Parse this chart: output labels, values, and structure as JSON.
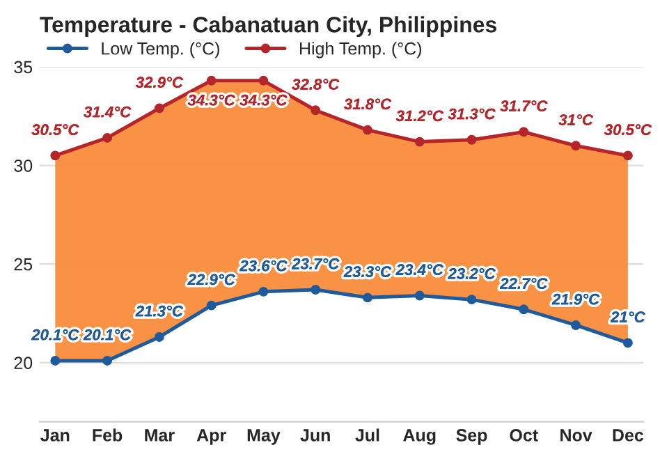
{
  "chart_data": {
    "type": "line",
    "title": "Temperature - Cabanatuan City, Philippines",
    "categories": [
      "Jan",
      "Feb",
      "Mar",
      "Apr",
      "May",
      "Jun",
      "Jul",
      "Aug",
      "Sep",
      "Oct",
      "Nov",
      "Dec"
    ],
    "series": [
      {
        "name": "Low Temp. (°C)",
        "color": "#1f5a9c",
        "values": [
          20.1,
          20.1,
          21.3,
          22.9,
          23.6,
          23.7,
          23.3,
          23.4,
          23.2,
          22.7,
          21.9,
          21
        ],
        "value_labels": [
          "20.1°C",
          "20.1°C",
          "21.3°C",
          "22.9°C",
          "23.6°C",
          "23.7°C",
          "23.3°C",
          "23.4°C",
          "23.2°C",
          "22.7°C",
          "21.9°C",
          "21°C"
        ]
      },
      {
        "name": "High Temp. (°C)",
        "color": "#b5252a",
        "values": [
          30.5,
          31.4,
          32.9,
          34.3,
          34.3,
          32.8,
          31.8,
          31.2,
          31.3,
          31.7,
          31,
          30.5
        ],
        "value_labels": [
          "30.5°C",
          "31.4°C",
          "32.9°C",
          "34.3°C",
          "34.3°C",
          "32.8°C",
          "31.8°C",
          "31.2°C",
          "31.3°C",
          "31.7°C",
          "31°C",
          "30.5°C"
        ],
        "lower": [
          20.1,
          20.1,
          21.3,
          22.9,
          23.6,
          23.7,
          23.3,
          23.4,
          23.2,
          22.7,
          21.9,
          21
        ],
        "upper": [
          30.5,
          31.4,
          32.9,
          34.3,
          34.3,
          32.8,
          31.8,
          31.2,
          31.3,
          31.7,
          31,
          30.5
        ]
      }
    ],
    "ylim": [
      17,
      35
    ],
    "yticks": [
      20,
      25,
      30,
      35
    ],
    "grid": "y",
    "legend": "top left",
    "marker": "circle",
    "line_style": "solid"
  }
}
